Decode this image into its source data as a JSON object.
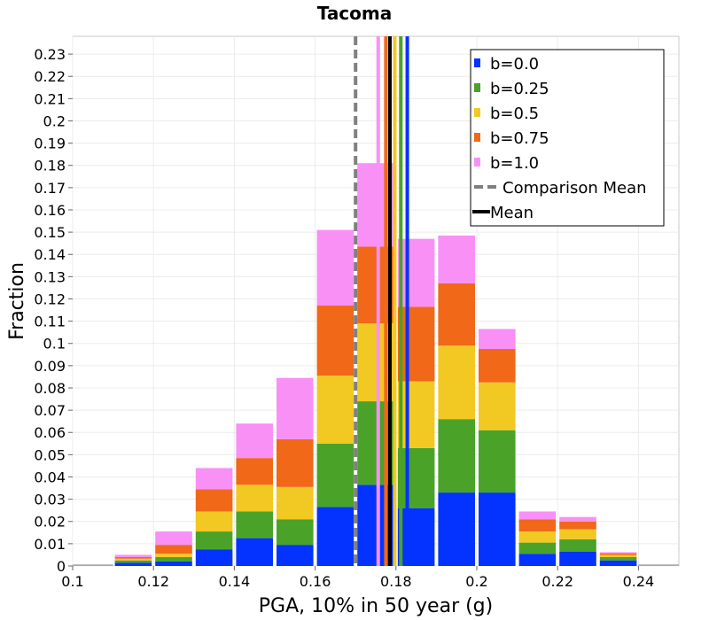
{
  "chart_data": {
    "type": "bar",
    "stacked": true,
    "title": "Tacoma",
    "xlabel": "PGA, 10% in 50 year (g)",
    "ylabel": "Fraction",
    "xlim": [
      0.1,
      0.25
    ],
    "ylim": [
      0,
      0.238
    ],
    "xticks": [
      "0.1",
      "0.12",
      "0.14",
      "0.16",
      "0.18",
      "0.2",
      "0.22",
      "0.24"
    ],
    "yticks": [
      "0",
      "0.01",
      "0.02",
      "0.03",
      "0.04",
      "0.05",
      "0.06",
      "0.07",
      "0.08",
      "0.09",
      "0.1",
      "0.11",
      "0.12",
      "0.13",
      "0.14",
      "0.15",
      "0.16",
      "0.17",
      "0.18",
      "0.19",
      "0.2",
      "0.21",
      "0.22",
      "0.23"
    ],
    "bin_width": 0.01,
    "bin_starts": [
      0.1,
      0.11,
      0.12,
      0.13,
      0.14,
      0.15,
      0.16,
      0.17,
      0.18,
      0.19,
      0.2,
      0.21,
      0.22,
      0.23,
      0.24
    ],
    "series": [
      {
        "name": "b=0.0",
        "color": "#0433ff",
        "values": [
          0.0,
          0.0015,
          0.002,
          0.0075,
          0.0125,
          0.0095,
          0.0265,
          0.0365,
          0.026,
          0.033,
          0.033,
          0.0055,
          0.0065,
          0.0025,
          0.0
        ]
      },
      {
        "name": "b=0.25",
        "color": "#4aa328",
        "values": [
          0.0,
          0.001,
          0.002,
          0.008,
          0.012,
          0.0115,
          0.0285,
          0.0375,
          0.027,
          0.033,
          0.028,
          0.005,
          0.0055,
          0.0015,
          0.0
        ]
      },
      {
        "name": "b=0.5",
        "color": "#f2c823",
        "values": [
          0.0,
          0.0008,
          0.0015,
          0.009,
          0.012,
          0.0145,
          0.0305,
          0.035,
          0.03,
          0.033,
          0.0215,
          0.005,
          0.0045,
          0.001,
          0.0
        ]
      },
      {
        "name": "b=0.75",
        "color": "#f06818",
        "values": [
          0.0,
          0.0007,
          0.004,
          0.01,
          0.012,
          0.0215,
          0.0315,
          0.0345,
          0.0335,
          0.028,
          0.015,
          0.0055,
          0.0035,
          0.0007,
          0.0
        ]
      },
      {
        "name": "b=1.0",
        "color": "#f990f6",
        "values": [
          0.0,
          0.001,
          0.006,
          0.0095,
          0.0155,
          0.0275,
          0.034,
          0.0375,
          0.0305,
          0.0215,
          0.009,
          0.0035,
          0.002,
          0.0005,
          0.0
        ]
      }
    ],
    "baseline": {
      "color": "#aaaaaa",
      "value": 0.0007
    },
    "mean_lines": [
      {
        "name": "b=0.0",
        "x": 0.1828,
        "color": "#0433ff"
      },
      {
        "name": "b=0.25",
        "x": 0.1812,
        "color": "#4aa328"
      },
      {
        "name": "b=0.5",
        "x": 0.1797,
        "color": "#f2c823"
      },
      {
        "name": "b=0.75",
        "x": 0.1775,
        "color": "#f06818"
      },
      {
        "name": "b=1.0",
        "x": 0.1756,
        "color": "#f990f6"
      },
      {
        "name": "Mean",
        "x": 0.1785,
        "color": "#000000"
      },
      {
        "name": "Comparison Mean",
        "x": 0.17,
        "color": "#808080",
        "dashed": true
      }
    ],
    "legend": {
      "position": "top-right",
      "entries": [
        {
          "label": "b=0.0",
          "color": "#0433ff",
          "kind": "box"
        },
        {
          "label": "b=0.25",
          "color": "#4aa328",
          "kind": "box"
        },
        {
          "label": "b=0.5",
          "color": "#f2c823",
          "kind": "box"
        },
        {
          "label": "b=0.75",
          "color": "#f06818",
          "kind": "box"
        },
        {
          "label": "b=1.0",
          "color": "#f990f6",
          "kind": "box"
        },
        {
          "label": "Comparison Mean",
          "color": "#808080",
          "kind": "dash"
        },
        {
          "label": "Mean",
          "color": "#000000",
          "kind": "line"
        }
      ]
    }
  }
}
